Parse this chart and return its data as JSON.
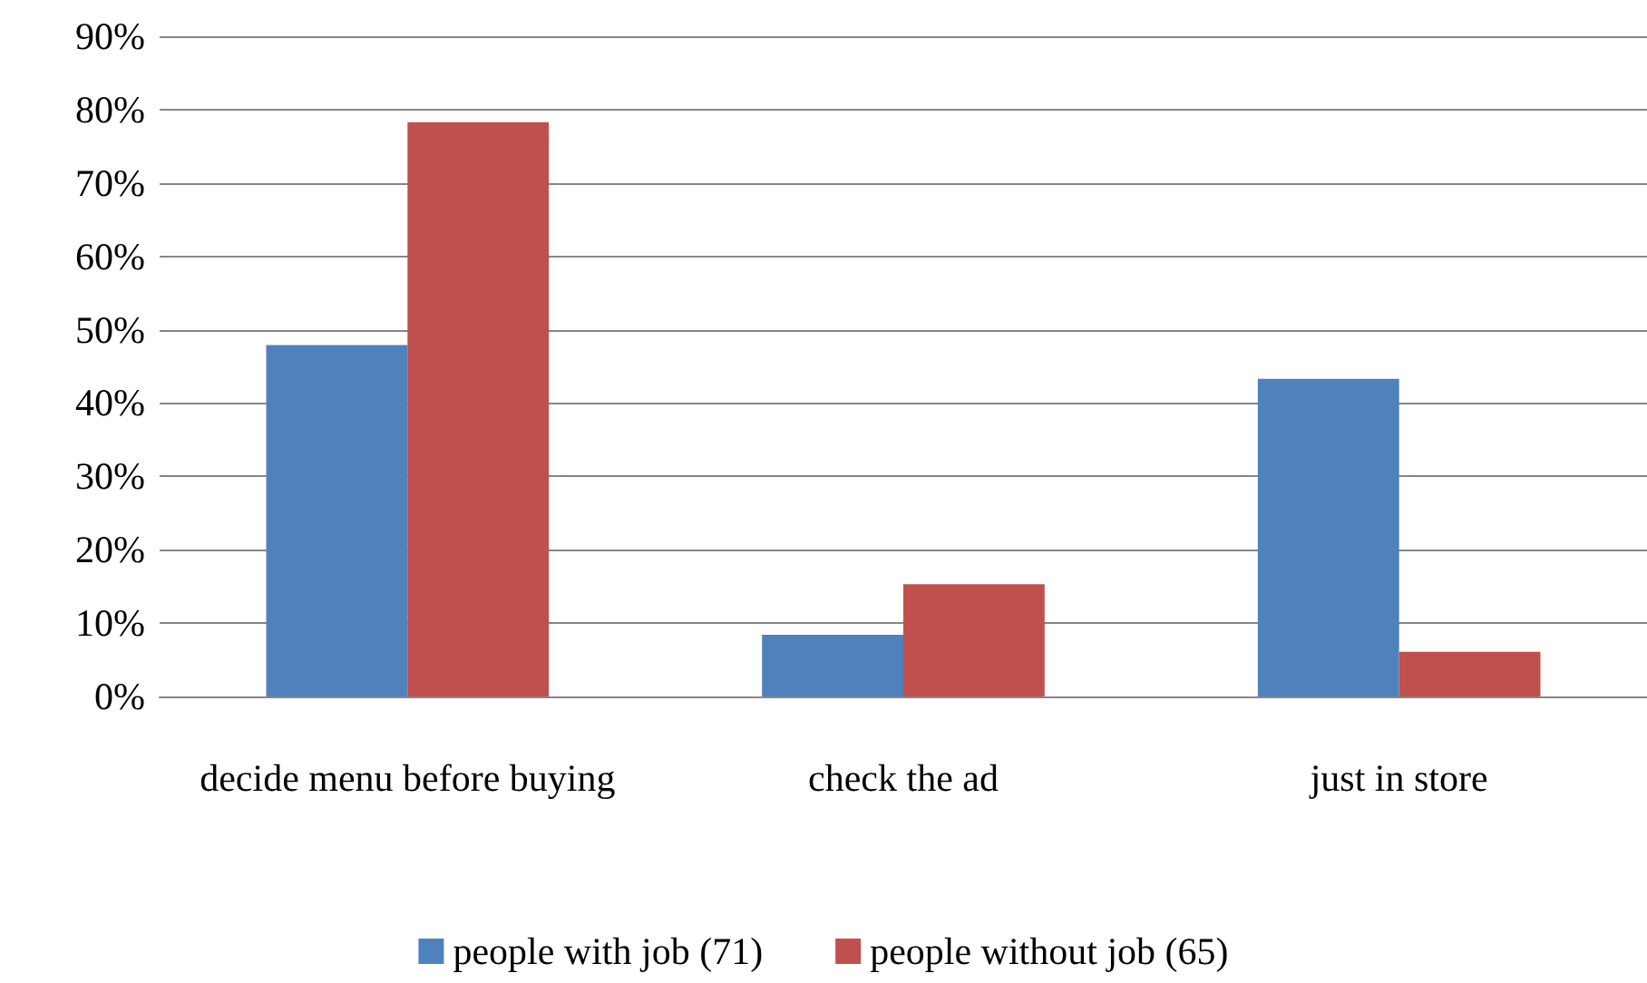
{
  "chart_data": {
    "type": "bar",
    "categories": [
      "decide menu before buying",
      "check the ad",
      "just in store"
    ],
    "series": [
      {
        "name": "people with job (71)",
        "color": "#4f81bd",
        "values": [
          47.9,
          8.4,
          43.3
        ]
      },
      {
        "name": "people without job (65)",
        "color": "#c0504d",
        "values": [
          78.3,
          15.3,
          6.1
        ]
      }
    ],
    "ylim": [
      0,
      90
    ],
    "yticks": [
      {
        "value": 0,
        "label": "0%"
      },
      {
        "value": 10,
        "label": "10%"
      },
      {
        "value": 20,
        "label": "20%"
      },
      {
        "value": 30,
        "label": "30%"
      },
      {
        "value": 40,
        "label": "40%"
      },
      {
        "value": 50,
        "label": "50%"
      },
      {
        "value": 60,
        "label": "60%"
      },
      {
        "value": 70,
        "label": "70%"
      },
      {
        "value": 80,
        "label": "80%"
      },
      {
        "value": 90,
        "label": "90%"
      }
    ],
    "grid": "y",
    "legend": "bottom"
  }
}
